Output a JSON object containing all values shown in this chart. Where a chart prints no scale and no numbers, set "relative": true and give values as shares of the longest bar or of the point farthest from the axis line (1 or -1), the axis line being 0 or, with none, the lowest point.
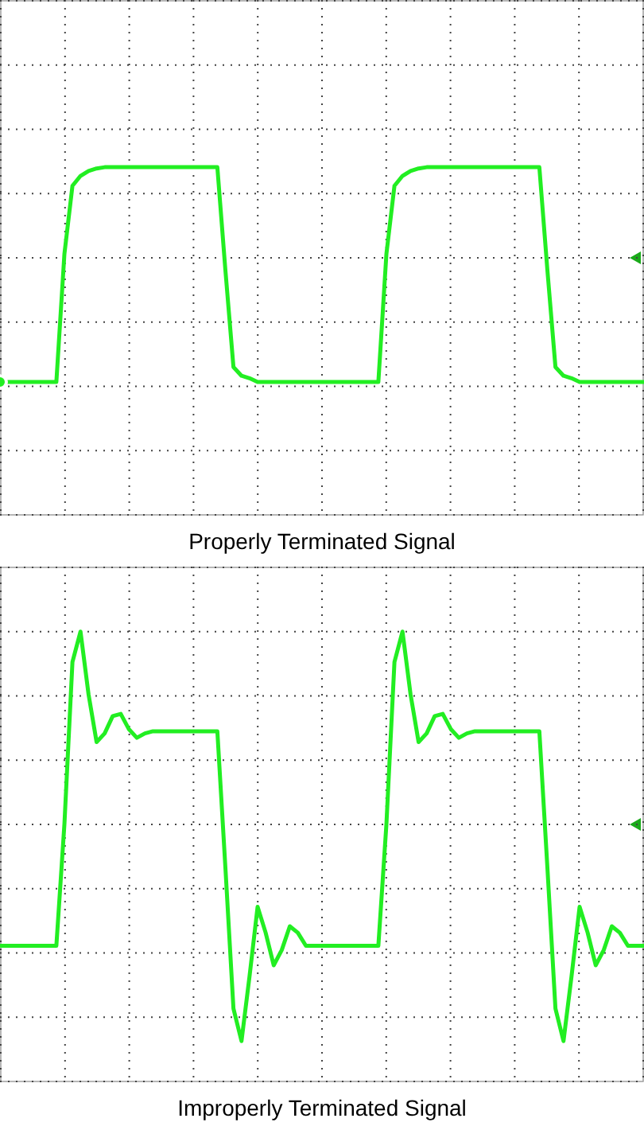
{
  "chart_data": [
    {
      "type": "line",
      "title": "Properly Terminated Signal",
      "relative": true,
      "grid": true,
      "color": "#22ee22",
      "categories": [
        null,
        null,
        null,
        null,
        null,
        null,
        null,
        null,
        null,
        null,
        null,
        null,
        null,
        null,
        null,
        null,
        null,
        null,
        null,
        null,
        null,
        null,
        null,
        null,
        null,
        null,
        null,
        null,
        null,
        null,
        null,
        null,
        null,
        null,
        null,
        null,
        null,
        null,
        null,
        null,
        null,
        null,
        null,
        null,
        null,
        null,
        null,
        null,
        null,
        null,
        null,
        null,
        null,
        null,
        null,
        null,
        null,
        null,
        null,
        null,
        null,
        null,
        null,
        null,
        null,
        null,
        null,
        null,
        null,
        null,
        null,
        null,
        null,
        null,
        null,
        null,
        null,
        null,
        null,
        null,
        null
      ],
      "values": [
        -1,
        -1,
        -1,
        -1,
        -1,
        -1,
        -1,
        -1,
        0.03,
        0.58,
        0.66,
        0.7,
        0.72,
        0.73,
        0.73,
        0.73,
        0.73,
        0.73,
        0.73,
        0.73,
        0.73,
        0.73,
        0.73,
        0.73,
        0.73,
        0.73,
        0.73,
        0.73,
        -0.1,
        -0.88,
        -0.95,
        -0.97,
        -1,
        -1,
        -1,
        -1,
        -1,
        -1,
        -1,
        -1,
        -1,
        -1,
        -1,
        -1,
        -1,
        -1,
        -1,
        -1,
        0.03,
        0.58,
        0.66,
        0.7,
        0.72,
        0.73,
        0.73,
        0.73,
        0.73,
        0.73,
        0.73,
        0.73,
        0.73,
        0.73,
        0.73,
        0.73,
        0.73,
        0.73,
        0.73,
        0.73,
        -0.1,
        -0.88,
        -0.95,
        -0.97,
        -1,
        -1,
        -1,
        -1,
        -1,
        -1,
        -1,
        -1,
        -1
      ]
    },
    {
      "type": "line",
      "title": "Improperly Terminated Signal",
      "relative": true,
      "grid": true,
      "color": "#22ee22",
      "categories": [
        null,
        null,
        null,
        null,
        null,
        null,
        null,
        null,
        null,
        null,
        null,
        null,
        null,
        null,
        null,
        null,
        null,
        null,
        null,
        null,
        null,
        null,
        null,
        null,
        null,
        null,
        null,
        null,
        null,
        null,
        null,
        null,
        null,
        null,
        null,
        null,
        null,
        null,
        null,
        null,
        null,
        null,
        null,
        null,
        null,
        null,
        null,
        null,
        null,
        null,
        null,
        null,
        null,
        null,
        null,
        null,
        null,
        null,
        null,
        null,
        null,
        null,
        null,
        null,
        null,
        null,
        null,
        null,
        null,
        null,
        null,
        null,
        null,
        null,
        null,
        null,
        null,
        null,
        null,
        null,
        null
      ],
      "values": [
        -0.56,
        -0.56,
        -0.56,
        -0.56,
        -0.56,
        -0.56,
        -0.56,
        -0.56,
        0.0,
        0.75,
        0.89,
        0.6,
        0.38,
        0.42,
        0.5,
        0.51,
        0.44,
        0.4,
        0.42,
        0.43,
        0.43,
        0.43,
        0.43,
        0.43,
        0.43,
        0.43,
        0.43,
        0.43,
        -0.2,
        -0.85,
        -1,
        -0.7,
        -0.38,
        -0.5,
        -0.65,
        -0.58,
        -0.47,
        -0.5,
        -0.56,
        -0.56,
        -0.56,
        -0.56,
        -0.56,
        -0.56,
        -0.56,
        -0.56,
        -0.56,
        -0.56,
        0.0,
        0.75,
        0.89,
        0.6,
        0.38,
        0.42,
        0.5,
        0.51,
        0.44,
        0.4,
        0.42,
        0.43,
        0.43,
        0.43,
        0.43,
        0.43,
        0.43,
        0.43,
        0.43,
        0.43,
        -0.2,
        -0.85,
        -1,
        -0.7,
        -0.38,
        -0.5,
        -0.65,
        -0.58,
        -0.47,
        -0.5,
        -0.56,
        -0.56,
        -0.56
      ]
    }
  ]
}
